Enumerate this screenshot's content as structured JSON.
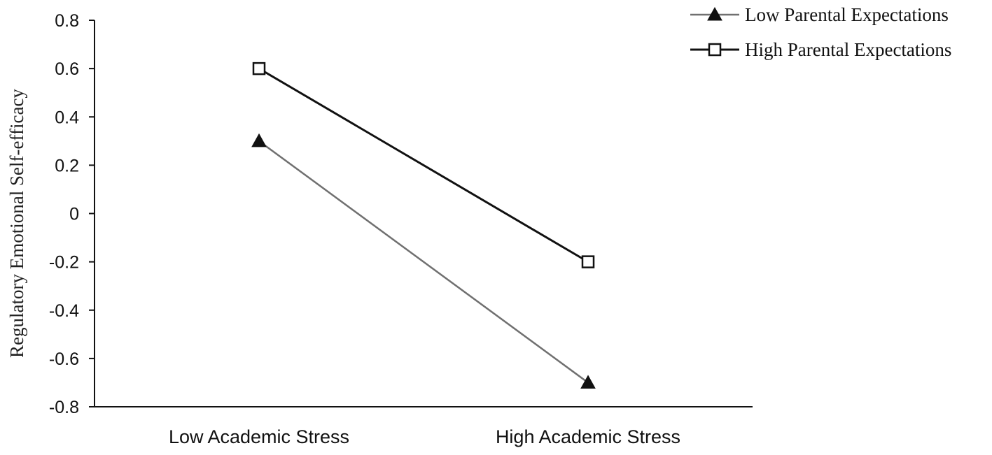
{
  "chart_data": {
    "type": "line",
    "title": "",
    "xlabel": "",
    "ylabel": "Regulatory Emotional Self-efficacy",
    "ylim": [
      -0.8,
      0.8
    ],
    "yticks": [
      0.8,
      0.6,
      0.4,
      0.2,
      0,
      -0.2,
      -0.4,
      -0.6,
      -0.8
    ],
    "ytick_labels": [
      "0.8",
      "0.6",
      "0.4",
      "0.2",
      "0",
      "-0.2",
      "-0.4",
      "-0.6",
      "-0.8"
    ],
    "categories": [
      "Low Academic Stress",
      "High Academic Stress"
    ],
    "grid": false,
    "legend_position": "top-right",
    "series": [
      {
        "name": "Low Parental Expectations",
        "values": [
          0.3,
          -0.7
        ],
        "color": "#707070",
        "marker": "triangle-filled"
      },
      {
        "name": "High Parental Expectations",
        "values": [
          0.6,
          -0.2
        ],
        "color": "#111111",
        "marker": "square-open"
      }
    ]
  }
}
